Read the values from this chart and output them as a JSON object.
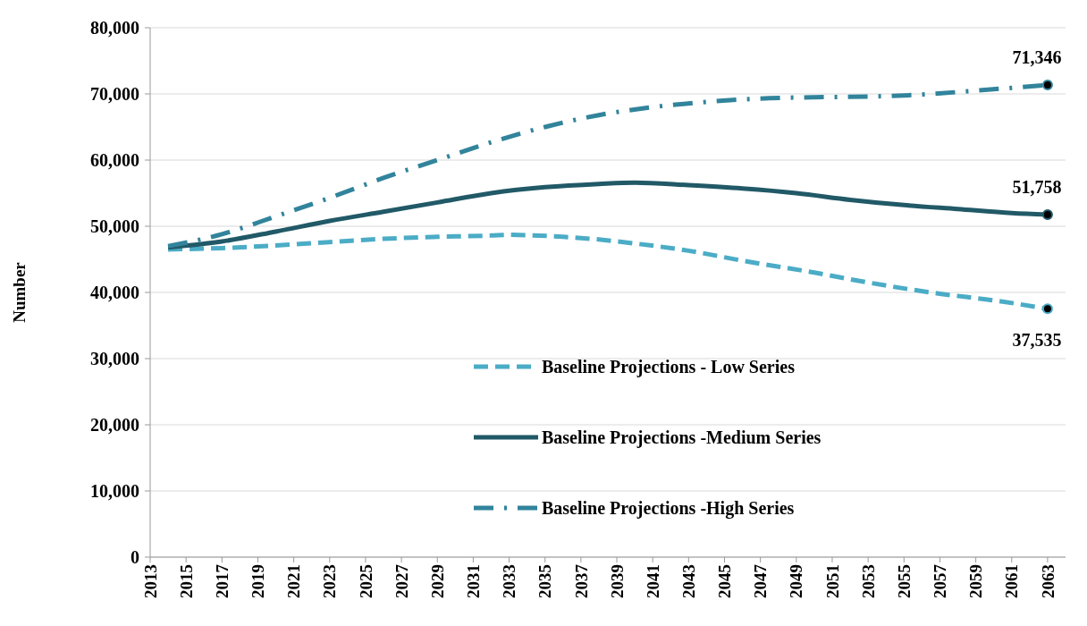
{
  "chart_data": {
    "type": "line",
    "ylabel": "Number",
    "xlim": [
      2013,
      2064
    ],
    "xticks": [
      2013,
      2015,
      2017,
      2019,
      2021,
      2023,
      2025,
      2027,
      2029,
      2031,
      2033,
      2035,
      2037,
      2039,
      2041,
      2043,
      2045,
      2047,
      2049,
      2051,
      2053,
      2055,
      2057,
      2059,
      2061,
      2063
    ],
    "ylim": [
      0,
      80000
    ],
    "yticks": [
      {
        "value": 0,
        "label": "0"
      },
      {
        "value": 10000,
        "label": "10,000"
      },
      {
        "value": 20000,
        "label": "20,000"
      },
      {
        "value": 30000,
        "label": "30,000"
      },
      {
        "value": 40000,
        "label": "40,000"
      },
      {
        "value": 50000,
        "label": "50,000"
      },
      {
        "value": 60000,
        "label": "60,000"
      },
      {
        "value": 70000,
        "label": "70,000"
      },
      {
        "value": 80000,
        "label": "80,000"
      }
    ],
    "grid": "y",
    "legend": "bottom",
    "series": [
      {
        "name": "Baseline Projections - Low Series",
        "color": "#4bacc6",
        "line_style": "dashed",
        "x": [
          2014,
          2017,
          2020,
          2023,
          2026,
          2029,
          2032,
          2033,
          2036,
          2038,
          2040,
          2043,
          2046,
          2050,
          2053,
          2057,
          2060,
          2063
        ],
        "values": [
          46500,
          46700,
          47100,
          47600,
          48100,
          48400,
          48600,
          48700,
          48400,
          48000,
          47400,
          46300,
          44800,
          43000,
          41500,
          39800,
          38800,
          37535
        ],
        "value_labels": [
          null,
          null,
          null,
          null,
          null,
          null,
          null,
          null,
          null,
          null,
          null,
          null,
          null,
          null,
          null,
          null,
          null,
          "37,535"
        ]
      },
      {
        "name": "Baseline Projections -Medium Series",
        "color": "#215967",
        "line_style": "solid",
        "x": [
          2014,
          2017,
          2020,
          2023,
          2026,
          2029,
          2032,
          2035,
          2038,
          2040,
          2043,
          2046,
          2049,
          2052,
          2055,
          2058,
          2061,
          2063
        ],
        "values": [
          46800,
          47700,
          49200,
          50800,
          52200,
          53600,
          55000,
          55900,
          56400,
          56600,
          56200,
          55700,
          55000,
          54000,
          53200,
          52600,
          52000,
          51758
        ],
        "value_labels": [
          null,
          null,
          null,
          null,
          null,
          null,
          null,
          null,
          null,
          null,
          null,
          null,
          null,
          null,
          null,
          null,
          null,
          "51,758"
        ]
      },
      {
        "name": "Baseline Projections -High Series",
        "color": "#31849b",
        "line_style": "dashdot",
        "x": [
          2014,
          2017,
          2020,
          2023,
          2026,
          2029,
          2032,
          2035,
          2038,
          2041,
          2044,
          2047,
          2050,
          2053,
          2056,
          2059,
          2063
        ],
        "values": [
          47000,
          48800,
          51500,
          54300,
          57300,
          60000,
          62700,
          65000,
          66800,
          68000,
          68800,
          69300,
          69500,
          69600,
          69900,
          70500,
          71346
        ],
        "value_labels": [
          null,
          null,
          null,
          null,
          null,
          null,
          null,
          null,
          null,
          null,
          null,
          null,
          null,
          null,
          null,
          null,
          "71,346"
        ]
      }
    ]
  }
}
